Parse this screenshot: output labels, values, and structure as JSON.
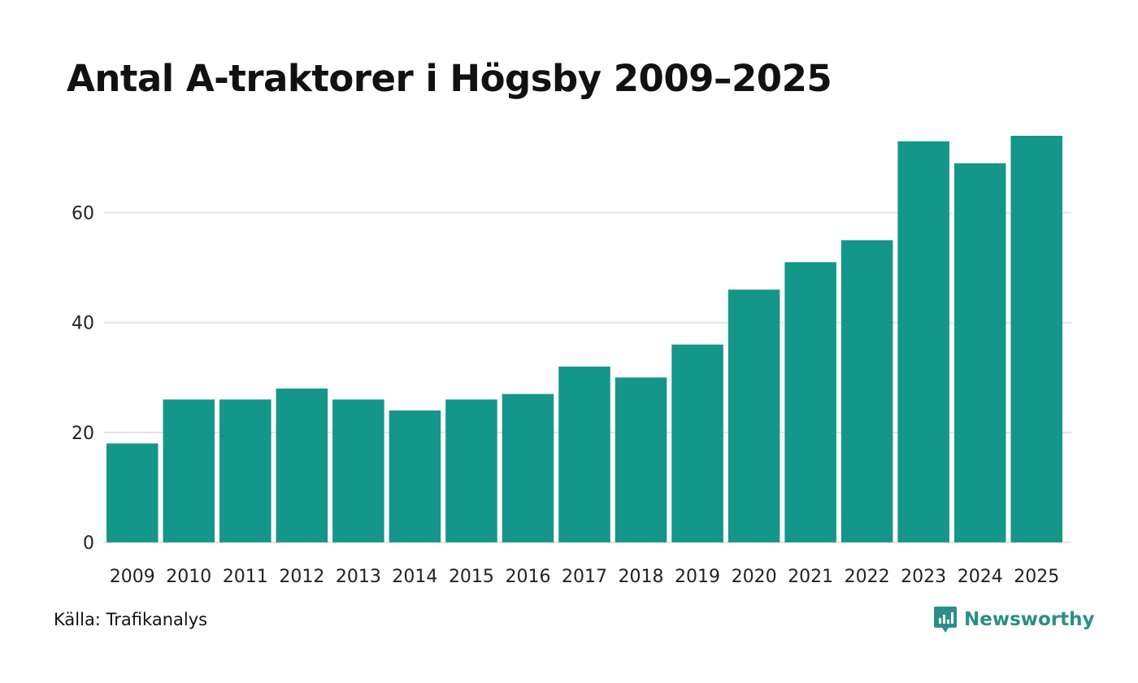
{
  "colors": {
    "bar": "#15968a",
    "brand": "#2a8f86",
    "grid": "#e3e3e3"
  },
  "footer": {
    "source": "Källa: Trafikanalys",
    "brand": "Newsworthy",
    "brand_icon": "newsworthy-logo-icon"
  },
  "chart_data": {
    "type": "bar",
    "title": "Antal A-traktorer i Högsby 2009–2025",
    "xlabel": "",
    "ylabel": "",
    "categories": [
      "2009",
      "2010",
      "2011",
      "2012",
      "2013",
      "2014",
      "2015",
      "2016",
      "2017",
      "2018",
      "2019",
      "2020",
      "2021",
      "2022",
      "2023",
      "2024",
      "2025"
    ],
    "values": [
      18,
      26,
      26,
      28,
      26,
      24,
      26,
      27,
      32,
      30,
      36,
      46,
      51,
      55,
      73,
      69,
      74
    ],
    "ylim": [
      0,
      74
    ],
    "yticks": [
      0,
      20,
      40,
      60
    ],
    "grid": true,
    "legend": "none"
  }
}
